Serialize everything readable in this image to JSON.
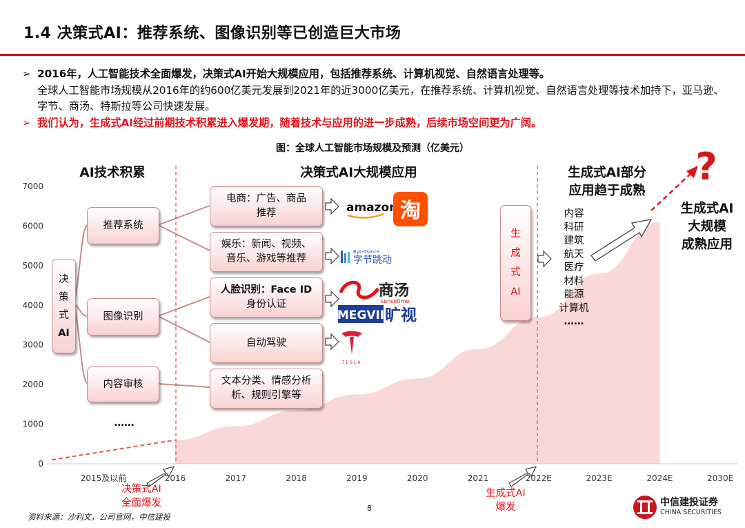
{
  "slide": {
    "title": "1.4 决策式AI：推荐系统、图像识别等已创造巨大市场",
    "bullets": [
      "2016年，人工智能技术全面爆发，决策式AI开始大规模应用，包括推荐系统、计算机视觉、自然语言处理等。",
      "全球人工智能市场规模从2016年的约600亿美元发展到2021年的近3000亿美元，在推荐系统、计算机视觉、自然语言处理等技术加持下，亚马逊、字节、商汤、特斯拉等公司快速发展。",
      "我们认为，生成式AI经过前期技术积累进入爆发期，随着技术与应用的进一步成熟，后续市场空间更为广阔。"
    ],
    "bullet_marker": "➢",
    "chart_title": "图：全球人工智能市场规模及预测（亿美元）",
    "source": "资料来源：沙利文，公司官网，中信建投",
    "page_number": "8",
    "logo": {
      "cn": "中信建投证券",
      "en": "CHINA SECURITIES"
    }
  },
  "diagram": {
    "section_ai_accumulation": "AI技术积累",
    "section_decision_ai": "决策式AI大规模应用",
    "section_generative": [
      "生成式AI部分",
      "应用趋于成熟"
    ],
    "section_generative_mature": [
      "生成式AI",
      "大规模",
      "成熟应用"
    ],
    "root_box": [
      "决",
      "策",
      "式",
      "AI"
    ],
    "categories": [
      "推荐系统",
      "图像识别",
      "内容审核"
    ],
    "more": "……",
    "applications": [
      [
        "电商：广告、商品",
        "推荐"
      ],
      [
        "娱乐：新闻、视频、",
        "音乐、游戏等推荐"
      ],
      [
        "人脸识别：Face ID",
        "身份认证"
      ],
      [
        "自动驾驶"
      ],
      [
        "文本分类、情感分析",
        "析、规则引擎等"
      ]
    ],
    "company_logos": [
      "amazon",
      "淘",
      "ByteDance",
      "字节跳动",
      "商汤",
      "sensetime",
      "MEGVII",
      "旷视",
      "TESLA"
    ],
    "gen_ai_box": [
      "生",
      "成",
      "式",
      "AI"
    ],
    "gen_ai_fields": [
      "内容",
      "科研",
      "建筑",
      "航天",
      "医疗",
      "材料",
      "能源",
      "计算机",
      "……"
    ],
    "question_mark": "?",
    "marker_decision": [
      "决策式AI",
      "全面爆发"
    ],
    "marker_generative": [
      "生成式AI",
      "爆发"
    ]
  },
  "colors": {
    "accent": "#c8171e",
    "red_text": "#e0141c",
    "area_fill": "#fbd8d8",
    "box_border": "#c98a8a"
  },
  "chart_data": {
    "type": "area",
    "title": "图：全球人工智能市场规模及预测（亿美元）",
    "categories": [
      "2015及以前",
      "2016",
      "2017",
      "2018",
      "2019",
      "2020",
      "2021",
      "2022E",
      "2023E",
      "2024E",
      "2030E"
    ],
    "y_ticks": [
      0,
      1000,
      2000,
      3000,
      4000,
      5000,
      6000,
      7000
    ],
    "ylim": [
      0,
      7000
    ],
    "series": [
      {
        "values": [
          100,
          600,
          950,
          1350,
          1750,
          2150,
          2900,
          3700,
          4800,
          6100,
          null
        ]
      }
    ],
    "grid": false,
    "legend": "none"
  }
}
